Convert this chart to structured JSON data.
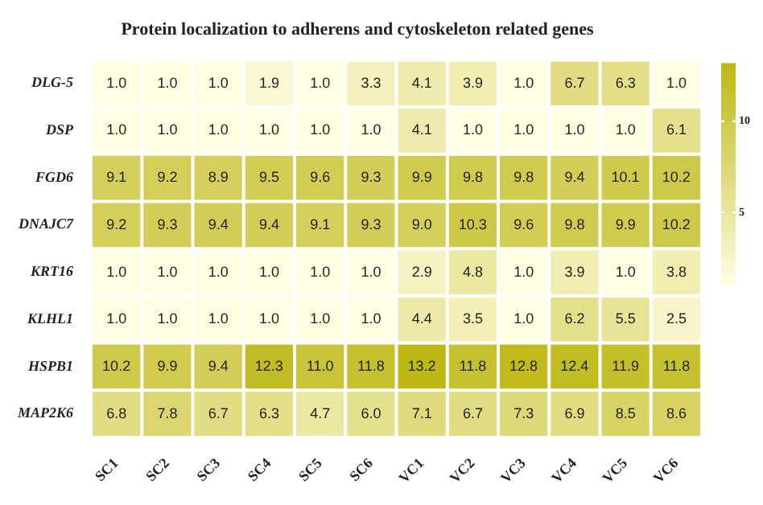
{
  "chart_data": {
    "type": "heatmap",
    "title": "Protein localization to adherens and cytoskeleton related genes",
    "categories": [
      "SC1",
      "SC2",
      "SC3",
      "SC4",
      "SC5",
      "SC6",
      "VC1",
      "VC2",
      "VC3",
      "VC4",
      "VC5",
      "VC6"
    ],
    "y_categories": [
      "DLG-5",
      "DSP",
      "FGD6",
      "DNAJC7",
      "KRT16",
      "KLHL1",
      "HSPB1",
      "MAP2K6"
    ],
    "cells": [
      [
        1.0,
        1.0,
        1.0,
        1.9,
        1.0,
        3.3,
        4.1,
        3.9,
        1.0,
        6.7,
        6.3,
        1.0
      ],
      [
        1.0,
        1.0,
        1.0,
        1.0,
        1.0,
        1.0,
        4.1,
        1.0,
        1.0,
        1.0,
        1.0,
        6.1
      ],
      [
        9.1,
        9.2,
        8.9,
        9.5,
        9.6,
        9.3,
        9.9,
        9.8,
        9.8,
        9.4,
        10.1,
        10.2
      ],
      [
        9.2,
        9.3,
        9.4,
        9.4,
        9.1,
        9.3,
        9.0,
        10.3,
        9.6,
        9.8,
        9.9,
        10.2
      ],
      [
        1.0,
        1.0,
        1.0,
        1.0,
        1.0,
        1.0,
        2.9,
        4.8,
        1.0,
        3.9,
        1.0,
        3.8
      ],
      [
        1.0,
        1.0,
        1.0,
        1.0,
        1.0,
        1.0,
        4.4,
        3.5,
        1.0,
        6.2,
        5.5,
        2.5
      ],
      [
        10.2,
        9.9,
        9.4,
        12.3,
        11.0,
        11.8,
        13.2,
        11.8,
        12.8,
        12.4,
        11.9,
        11.8
      ],
      [
        6.8,
        7.8,
        6.7,
        6.3,
        4.7,
        6.0,
        7.1,
        6.7,
        7.3,
        6.9,
        8.5,
        8.6
      ]
    ],
    "cell_labels": [
      [
        "1.0",
        "1.0",
        "1.0",
        "1.9",
        "1.0",
        "3.3",
        "4.1",
        "3.9",
        "1.0",
        "6.7",
        "6.3",
        "1.0"
      ],
      [
        "1.0",
        "1.0",
        "1.0",
        "1.0",
        "1.0",
        "1.0",
        "4.1",
        "1.0",
        "1.0",
        "1.0",
        "1.0",
        "6.1"
      ],
      [
        "9.1",
        "9.2",
        "8.9",
        "9.5",
        "9.6",
        "9.3",
        "9.9",
        "9.8",
        "9.8",
        "9.4",
        "10.1",
        "10.2"
      ],
      [
        "9.2",
        "9.3",
        "9.4",
        "9.4",
        "9.1",
        "9.3",
        "9.0",
        "10.3",
        "9.6",
        "9.8",
        "9.9",
        "10.2"
      ],
      [
        "1.0",
        "1.0",
        "1.0",
        "1.0",
        "1.0",
        "1.0",
        "2.9",
        "4.8",
        "1.0",
        "3.9",
        "1.0",
        "3.8"
      ],
      [
        "1.0",
        "1.0",
        "1.0",
        "1.0",
        "1.0",
        "1.0",
        "4.4",
        "3.5",
        "1.0",
        "6.2",
        "5.5",
        "2.5"
      ],
      [
        "10.2",
        "9.9",
        "9.4",
        "12.3",
        "11.0",
        "11.8",
        "13.2",
        "11.8",
        "12.8",
        "12.4",
        "11.9",
        "11.8"
      ],
      [
        "6.8",
        "7.8",
        "6.7",
        "6.3",
        "4.7",
        "6.0",
        "7.1",
        "6.7",
        "7.3",
        "6.9",
        "8.5",
        "8.6"
      ]
    ],
    "clim": [
      1,
      13.2
    ],
    "cticks": [
      5,
      10
    ],
    "data_labels": true
  }
}
